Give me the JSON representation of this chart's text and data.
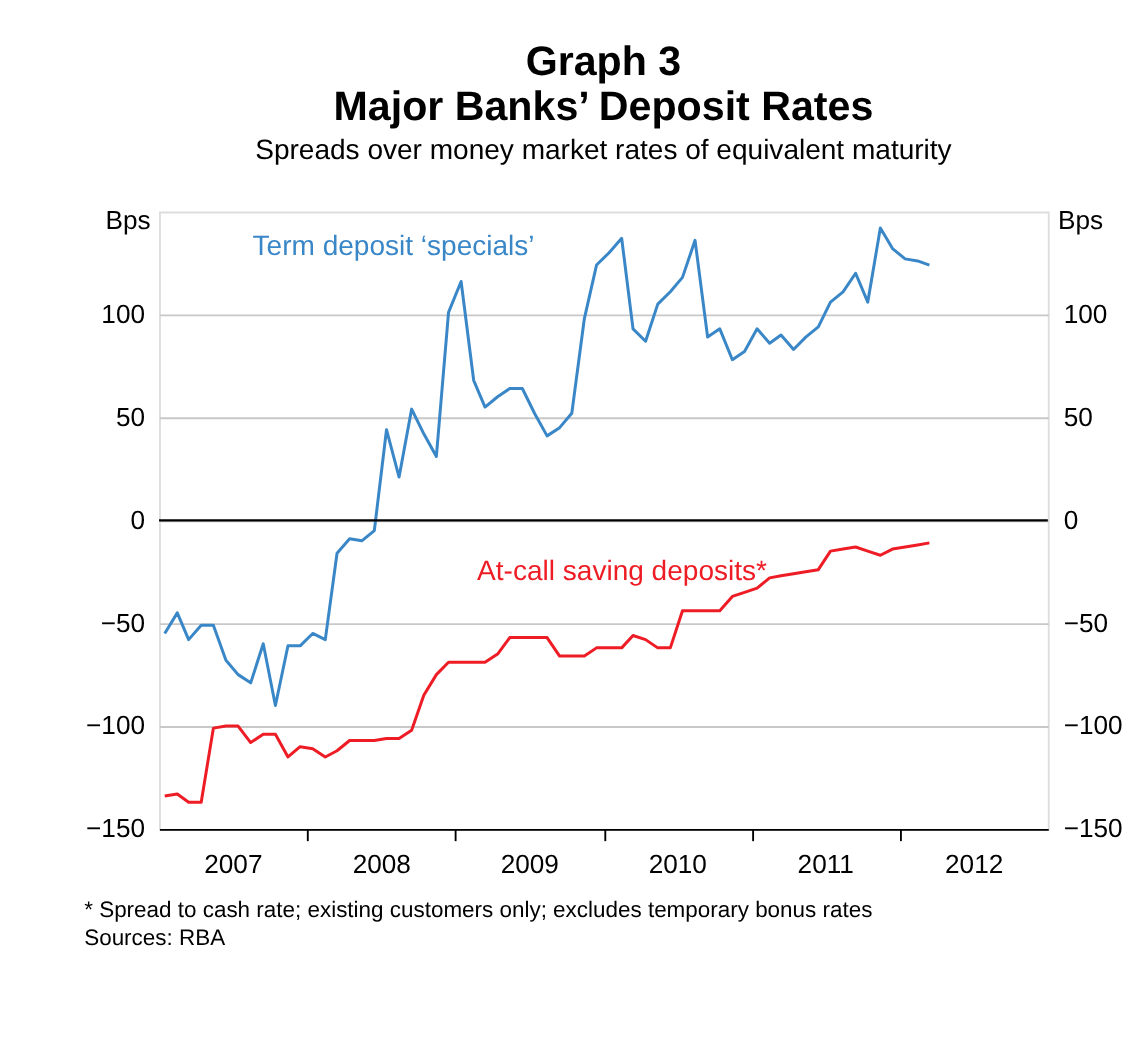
{
  "chart_data": {
    "type": "line",
    "title": "Graph 3\nMajor Banks’ Deposit Rates",
    "subtitle": "Spreads over money market rates of equivalent maturity",
    "ylabel": "Bps",
    "y2label": "Bps",
    "x": [
      "2007-01-15",
      "2007-02-15",
      "2007-03-15",
      "2007-04-15",
      "2007-05-15",
      "2007-06-15",
      "2007-07-15",
      "2007-08-15",
      "2007-09-15",
      "2007-10-15",
      "2007-11-15",
      "2007-12-15",
      "2008-01-15",
      "2008-02-15",
      "2008-03-15",
      "2008-04-15",
      "2008-05-15",
      "2008-06-15",
      "2008-07-15",
      "2008-08-15",
      "2008-09-15",
      "2008-10-15",
      "2008-11-15",
      "2008-12-15",
      "2009-01-15",
      "2009-02-15",
      "2009-03-15",
      "2009-04-15",
      "2009-05-15",
      "2009-06-15",
      "2009-07-15",
      "2009-08-15",
      "2009-09-15",
      "2009-10-15",
      "2009-11-15",
      "2009-12-15",
      "2010-01-15",
      "2010-02-15",
      "2010-03-15",
      "2010-04-15",
      "2010-05-15",
      "2010-06-15",
      "2010-07-15",
      "2010-08-15",
      "2010-09-15",
      "2010-10-15",
      "2010-11-15",
      "2010-12-15",
      "2011-01-15",
      "2011-02-15",
      "2011-03-15",
      "2011-04-15",
      "2011-05-15",
      "2011-06-15",
      "2011-07-15",
      "2011-08-15",
      "2011-09-15",
      "2011-10-15",
      "2011-11-15",
      "2011-12-15",
      "2012-01-15",
      "2012-02-15",
      "2012-03-15"
    ],
    "series": [
      {
        "name": "Term deposit ‘specials’",
        "color": "#3a87c8",
        "values": [
          -55,
          -45,
          -58,
          -51,
          -51,
          -68,
          -75,
          -79,
          -60,
          -90,
          -61,
          -61,
          -55,
          -58,
          -16,
          -9,
          -10,
          -5,
          44,
          21,
          54,
          42,
          31,
          101,
          116,
          68,
          55,
          60,
          64,
          64,
          52,
          41,
          45,
          52,
          98,
          124,
          130,
          137,
          93,
          87,
          105,
          111,
          118,
          136,
          89,
          93,
          78,
          82,
          93,
          86,
          90,
          83,
          89,
          94,
          106,
          111,
          120,
          106,
          142,
          132,
          127,
          126,
          124
        ]
      },
      {
        "name": "At-call saving deposits*",
        "color": "#ee1c25",
        "values": [
          -134,
          -133,
          -137,
          -137,
          -101,
          -100,
          -100,
          -108,
          -104,
          -104,
          -115,
          -110,
          -111,
          -115,
          -112,
          -107,
          -107,
          -107,
          -106,
          -106,
          -102,
          -85,
          -75,
          -69,
          -69,
          -69,
          -69,
          -65,
          -57,
          -57,
          -57,
          -57,
          -66,
          -66,
          -66,
          -62,
          -62,
          -62,
          -56,
          -58,
          -62,
          -62,
          -44,
          -44,
          -44,
          -44,
          -37,
          -35,
          -33,
          -28,
          -27,
          -26,
          -25,
          -24,
          -15,
          -14,
          -13,
          -15,
          -17,
          -14,
          -13,
          -12,
          -11
        ]
      }
    ],
    "xlim": [
      "2007-01-01",
      "2013-01-01"
    ],
    "xticks": [
      {
        "value": "2007-07-01",
        "label": "2007"
      },
      {
        "value": "2008-01-01",
        "label": null
      },
      {
        "value": "2008-07-01",
        "label": "2008"
      },
      {
        "value": "2009-01-01",
        "label": null
      },
      {
        "value": "2009-07-01",
        "label": "2009"
      },
      {
        "value": "2010-01-01",
        "label": null
      },
      {
        "value": "2010-07-01",
        "label": "2010"
      },
      {
        "value": "2011-01-01",
        "label": null
      },
      {
        "value": "2011-07-01",
        "label": "2011"
      },
      {
        "value": "2012-01-01",
        "label": null
      },
      {
        "value": "2012-07-01",
        "label": "2012"
      }
    ],
    "ylim": [
      -150,
      150
    ],
    "yticks": [
      -150,
      -100,
      -50,
      0,
      50,
      100
    ],
    "y2lim": [
      -150,
      150
    ],
    "y2ticks": [
      -150,
      -100,
      -50,
      0,
      50,
      100
    ],
    "ref_lines": [
      {
        "axis": "y",
        "value": 0,
        "color": "#000000"
      }
    ],
    "grid": "y",
    "legend": false,
    "marker": "none",
    "line_style": "solid",
    "annotations": [
      "*  Spread to cash rate; existing customers only; excludes temporary bonus rates",
      "Sources: RBA"
    ]
  }
}
